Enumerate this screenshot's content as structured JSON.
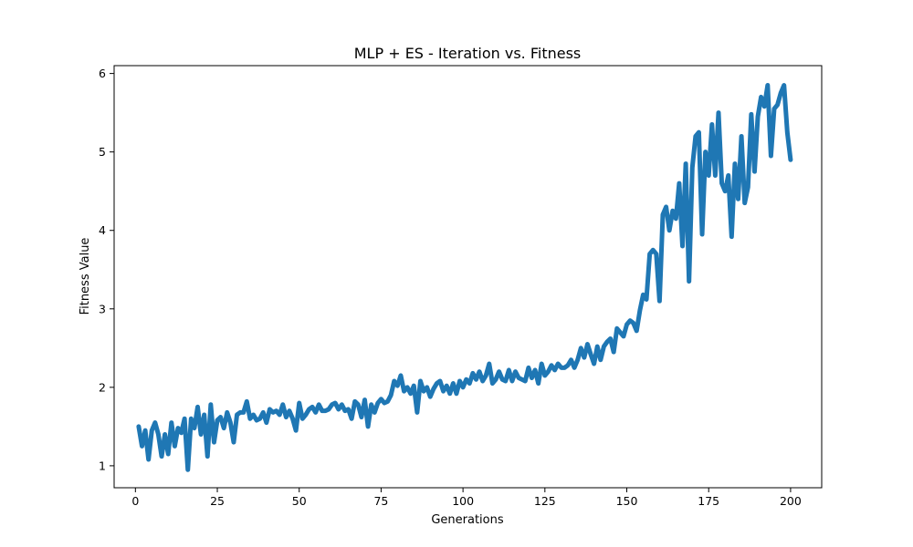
{
  "chart_data": {
    "type": "line",
    "title": "MLP + ES - Iteration vs. Fitness",
    "xlabel": "Generations",
    "ylabel": "Fitness Value",
    "xlim": [
      -6.5,
      209.5
    ],
    "ylim": [
      0.72,
      6.1
    ],
    "xticks": [
      0,
      25,
      50,
      75,
      100,
      125,
      150,
      175,
      200
    ],
    "yticks": [
      1,
      2,
      3,
      4,
      5,
      6
    ],
    "grid": false,
    "legend": "none",
    "series": [
      {
        "color": "#1f77b4",
        "x": [
          1,
          2,
          3,
          4,
          5,
          6,
          7,
          8,
          9,
          10,
          11,
          12,
          13,
          14,
          15,
          16,
          17,
          18,
          19,
          20,
          21,
          22,
          23,
          24,
          25,
          26,
          27,
          28,
          29,
          30,
          31,
          32,
          33,
          34,
          35,
          36,
          37,
          38,
          39,
          40,
          41,
          42,
          43,
          44,
          45,
          46,
          47,
          48,
          49,
          50,
          51,
          52,
          53,
          54,
          55,
          56,
          57,
          58,
          59,
          60,
          61,
          62,
          63,
          64,
          65,
          66,
          67,
          68,
          69,
          70,
          71,
          72,
          73,
          74,
          75,
          76,
          77,
          78,
          79,
          80,
          81,
          82,
          83,
          84,
          85,
          86,
          87,
          88,
          89,
          90,
          91,
          92,
          93,
          94,
          95,
          96,
          97,
          98,
          99,
          100,
          101,
          102,
          103,
          104,
          105,
          106,
          107,
          108,
          109,
          110,
          111,
          112,
          113,
          114,
          115,
          116,
          117,
          118,
          119,
          120,
          121,
          122,
          123,
          124,
          125,
          126,
          127,
          128,
          129,
          130,
          131,
          132,
          133,
          134,
          135,
          136,
          137,
          138,
          139,
          140,
          141,
          142,
          143,
          144,
          145,
          146,
          147,
          148,
          149,
          150,
          151,
          152,
          153,
          154,
          155,
          156,
          157,
          158,
          159,
          160,
          161,
          162,
          163,
          164,
          165,
          166,
          167,
          168,
          169,
          170,
          171,
          172,
          173,
          174,
          175,
          176,
          177,
          178,
          179,
          180,
          181,
          182,
          183,
          184,
          185,
          186,
          187,
          188,
          189,
          190,
          191,
          192,
          193,
          194,
          195,
          196,
          197,
          198,
          199,
          200
        ],
        "y": [
          1.5,
          1.25,
          1.45,
          1.08,
          1.45,
          1.55,
          1.4,
          1.12,
          1.4,
          1.15,
          1.55,
          1.25,
          1.48,
          1.42,
          1.6,
          0.95,
          1.6,
          1.48,
          1.75,
          1.4,
          1.65,
          1.12,
          1.78,
          1.3,
          1.58,
          1.62,
          1.48,
          1.68,
          1.55,
          1.3,
          1.65,
          1.68,
          1.68,
          1.82,
          1.6,
          1.65,
          1.58,
          1.6,
          1.68,
          1.55,
          1.72,
          1.68,
          1.7,
          1.65,
          1.78,
          1.62,
          1.7,
          1.6,
          1.45,
          1.8,
          1.6,
          1.65,
          1.72,
          1.75,
          1.68,
          1.78,
          1.7,
          1.7,
          1.72,
          1.78,
          1.8,
          1.72,
          1.78,
          1.7,
          1.72,
          1.6,
          1.82,
          1.78,
          1.62,
          1.84,
          1.5,
          1.78,
          1.68,
          1.8,
          1.85,
          1.8,
          1.82,
          1.9,
          2.08,
          2.02,
          2.15,
          1.95,
          2.0,
          1.92,
          2.02,
          1.68,
          2.08,
          1.95,
          2.0,
          1.88,
          1.98,
          2.05,
          2.08,
          1.95,
          2.02,
          1.92,
          2.05,
          1.92,
          2.08,
          2.0,
          2.1,
          2.05,
          2.18,
          2.1,
          2.2,
          2.08,
          2.15,
          2.3,
          2.05,
          2.1,
          2.2,
          2.1,
          2.08,
          2.22,
          2.08,
          2.2,
          2.12,
          2.1,
          2.08,
          2.25,
          2.12,
          2.22,
          2.05,
          2.3,
          2.15,
          2.2,
          2.28,
          2.22,
          2.3,
          2.25,
          2.25,
          2.28,
          2.35,
          2.25,
          2.35,
          2.5,
          2.38,
          2.55,
          2.42,
          2.3,
          2.52,
          2.35,
          2.52,
          2.58,
          2.62,
          2.45,
          2.75,
          2.7,
          2.65,
          2.8,
          2.85,
          2.82,
          2.72,
          2.98,
          3.18,
          3.12,
          3.7,
          3.75,
          3.7,
          3.1,
          4.2,
          4.3,
          4.0,
          4.25,
          4.15,
          4.6,
          3.8,
          4.85,
          3.35,
          4.8,
          5.2,
          5.25,
          3.95,
          5.0,
          4.7,
          5.35,
          4.7,
          5.5,
          4.6,
          4.5,
          4.7,
          3.92,
          4.85,
          4.4,
          5.2,
          4.35,
          4.55,
          5.48,
          4.75,
          5.45,
          5.7,
          5.58,
          5.85,
          4.95,
          5.55,
          5.6,
          5.75,
          5.85,
          5.25,
          4.9
        ]
      }
    ]
  }
}
